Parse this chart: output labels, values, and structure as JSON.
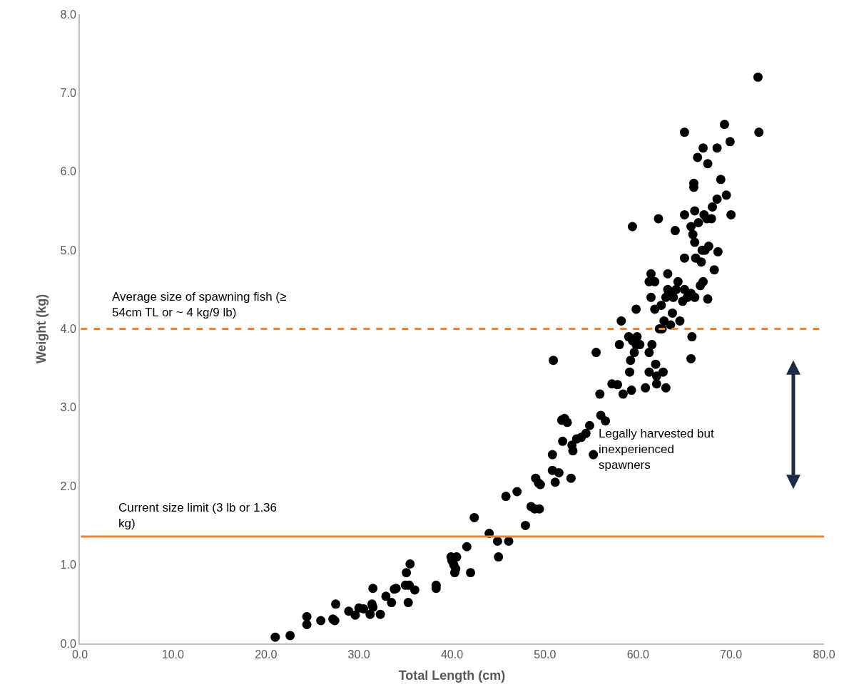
{
  "chart_data": {
    "type": "scatter",
    "xlabel": "Total Length (cm)",
    "ylabel": "Weight (kg)",
    "xlim": [
      0,
      80
    ],
    "xticks": [
      {
        "value": 0,
        "label": "0.0"
      },
      {
        "value": 10,
        "label": "10.0"
      },
      {
        "value": 20,
        "label": "20.0"
      },
      {
        "value": 30,
        "label": "30.0"
      },
      {
        "value": 40,
        "label": "40.0"
      },
      {
        "value": 50,
        "label": "50.0"
      },
      {
        "value": 60,
        "label": "60.0"
      },
      {
        "value": 70,
        "label": "70.0"
      },
      {
        "value": 80,
        "label": "80.0"
      }
    ],
    "ylim": [
      0,
      8
    ],
    "yticks": [
      {
        "value": 0,
        "label": "0.0"
      },
      {
        "value": 1,
        "label": "1.0"
      },
      {
        "value": 2,
        "label": "2.0"
      },
      {
        "value": 3,
        "label": "3.0"
      },
      {
        "value": 4,
        "label": "4.0"
      },
      {
        "value": 5,
        "label": "5.0"
      },
      {
        "value": 6,
        "label": "6.0"
      },
      {
        "value": 7,
        "label": "7.0"
      },
      {
        "value": 8,
        "label": "8.0"
      }
    ],
    "marker": "circle",
    "series": [
      {
        "color": "#000000",
        "x": [
          21.0,
          22.6,
          24.4,
          24.4,
          25.9,
          27.2,
          27.4,
          27.5,
          28.9,
          29.6,
          30.0,
          30.5,
          31.2,
          31.4,
          31.5,
          31.5,
          32.3,
          32.9,
          33.5,
          33.8,
          34.0,
          35.0,
          35.1,
          35.3,
          35.4,
          35.5,
          36.0,
          38.3,
          38.3,
          39.9,
          40.0,
          40.2,
          40.3,
          40.4,
          40.5,
          41.6,
          42.0,
          42.4,
          44.0,
          44.9,
          45.0,
          46.1,
          45.8,
          47.0,
          47.9,
          48.5,
          48.9,
          49.0,
          49.4,
          49.3,
          49.5,
          50.8,
          50.8,
          51.1,
          51.5,
          52.8,
          50.9,
          51.8,
          52.1,
          52.4,
          51.9,
          52.9,
          53.0,
          53.4,
          53.9,
          54.4,
          54.8,
          55.2,
          55.5,
          55.9,
          56.0,
          56.5,
          57.2,
          57.8,
          58.0,
          58.2,
          58.4,
          59.0,
          59.1,
          59.2,
          59.3,
          59.4,
          59.6,
          59.8,
          59.9,
          60.2,
          59.8,
          59.4,
          60.8,
          61.2,
          61.2,
          61.4,
          61.4,
          61.2,
          61.5,
          61.8,
          61.8,
          61.9,
          62.0,
          62.0,
          62.2,
          62.3,
          62.5,
          62.7,
          62.6,
          62.8,
          63.0,
          63.0,
          63.2,
          63.2,
          63.3,
          63.5,
          63.7,
          63.8,
          64.0,
          64.1,
          64.3,
          64.5,
          64.8,
          65.0,
          65.0,
          65.0,
          65.0,
          65.3,
          65.7,
          65.7,
          65.7,
          65.8,
          65.9,
          66.0,
          66.0,
          66.1,
          66.1,
          66.2,
          66.1,
          66.5,
          66.7,
          66.8,
          67.0,
          67.0,
          66.9,
          67.1,
          67.2,
          67.5,
          67.5,
          67.4,
          67.6,
          67.9,
          68.0,
          68.2,
          68.5,
          68.5,
          68.6,
          68.9,
          69.3,
          69.5,
          69.9,
          70.0,
          72.9,
          73.0,
          66.4
        ],
        "values": [
          0.08,
          0.1,
          0.34,
          0.24,
          0.29,
          0.31,
          0.29,
          0.5,
          0.41,
          0.36,
          0.45,
          0.44,
          0.37,
          0.5,
          0.46,
          0.7,
          0.37,
          0.6,
          0.52,
          0.69,
          0.7,
          0.74,
          0.9,
          0.52,
          0.74,
          1.01,
          0.68,
          0.7,
          0.74,
          1.1,
          1.05,
          1.0,
          0.9,
          0.95,
          1.1,
          1.23,
          0.9,
          1.6,
          1.4,
          1.3,
          1.1,
          1.3,
          1.87,
          1.93,
          1.5,
          1.74,
          1.71,
          2.1,
          1.71,
          2.04,
          2.02,
          2.2,
          2.4,
          2.05,
          2.17,
          2.1,
          3.6,
          2.84,
          2.86,
          2.81,
          2.57,
          2.52,
          2.45,
          2.6,
          2.62,
          2.67,
          2.77,
          2.4,
          3.7,
          3.17,
          2.9,
          2.83,
          3.3,
          3.29,
          3.8,
          4.1,
          3.17,
          3.9,
          3.45,
          3.6,
          3.22,
          3.85,
          3.7,
          3.8,
          3.9,
          3.8,
          4.25,
          5.3,
          3.25,
          3.7,
          3.45,
          4.7,
          4.4,
          4.6,
          3.8,
          4.6,
          4.25,
          3.55,
          3.3,
          3.4,
          5.4,
          4.0,
          4.3,
          3.45,
          4.0,
          4.1,
          4.4,
          3.25,
          4.7,
          4.5,
          4.45,
          4.05,
          4.2,
          4.4,
          5.25,
          4.5,
          4.6,
          4.1,
          4.35,
          4.5,
          4.9,
          5.45,
          6.5,
          4.4,
          5.3,
          4.45,
          3.62,
          3.9,
          5.2,
          5.85,
          5.8,
          5.5,
          5.1,
          4.9,
          4.4,
          5.35,
          4.55,
          4.85,
          4.6,
          6.3,
          5.0,
          5.45,
          5.0,
          4.38,
          6.1,
          5.4,
          5.05,
          5.4,
          5.55,
          4.75,
          6.3,
          5.65,
          4.98,
          5.9,
          6.6,
          5.7,
          6.38,
          5.45,
          7.2,
          6.5,
          6.18
        ]
      }
    ],
    "ref_lines": [
      {
        "axis": "y",
        "value": 4,
        "label": "Average size of spawning fish (≥ 54cm TL or ~ 4 kg/9 lb)",
        "color": "#e0873f",
        "line_style": "dashed"
      },
      {
        "axis": "y",
        "value": 1.36,
        "label": "Current size limit (3 lb or 1.36 kg)",
        "color": "#e0873f",
        "line_style": "solid"
      }
    ],
    "annotations": [
      "Legally harvested but inexperienced spawners"
    ]
  }
}
